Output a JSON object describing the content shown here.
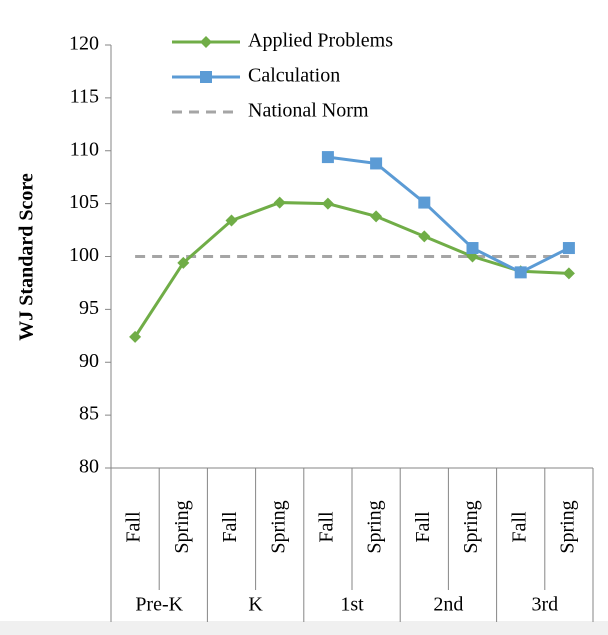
{
  "chart_data": {
    "type": "line",
    "y_label": "WJ Standard Score",
    "categories": [
      "Fall",
      "Spring",
      "Fall",
      "Spring",
      "Fall",
      "Spring",
      "Fall",
      "Spring",
      "Fall",
      "Spring"
    ],
    "groups": [
      "Pre-K",
      "K",
      "1st",
      "2nd",
      "3rd"
    ],
    "series": [
      {
        "name": "Applied Problems",
        "color": "#70ad47",
        "marker": "diamond",
        "dashed": false,
        "values": [
          92.4,
          99.4,
          103.4,
          105.1,
          105.0,
          103.8,
          101.9,
          100.0,
          98.6,
          98.4
        ]
      },
      {
        "name": "Calculation",
        "color": "#5b9bd5",
        "marker": "square",
        "dashed": false,
        "values": [
          null,
          null,
          null,
          null,
          109.4,
          108.8,
          105.1,
          100.8,
          98.5,
          100.8
        ]
      },
      {
        "name": "National Norm",
        "color": "#a5a5a5",
        "marker": "none",
        "dashed": true,
        "values": [
          100,
          100,
          100,
          100,
          100,
          100,
          100,
          100,
          100,
          100
        ]
      }
    ],
    "ylim": [
      80,
      120
    ],
    "yticks": [
      80,
      85,
      90,
      95,
      100,
      105,
      110,
      115,
      120
    ],
    "grid": false
  }
}
